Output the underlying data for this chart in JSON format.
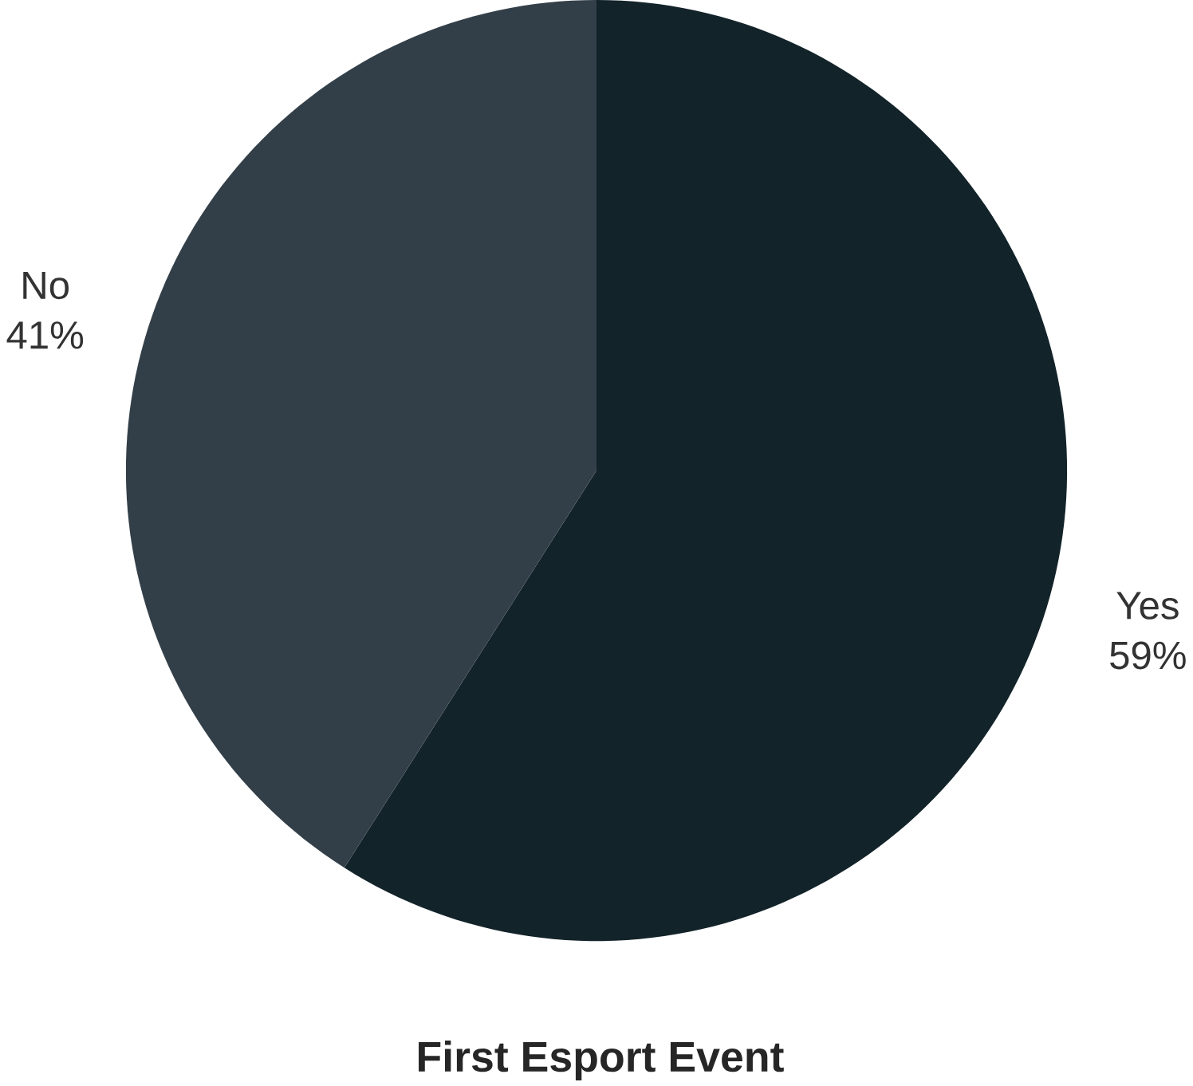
{
  "chart_data": {
    "type": "pie",
    "title": "First Esport Event",
    "categories": [
      "Yes",
      "No"
    ],
    "values": [
      59,
      41
    ],
    "value_labels": [
      "59%",
      "41%"
    ],
    "colors": [
      "#13232a",
      "#333f48"
    ]
  }
}
